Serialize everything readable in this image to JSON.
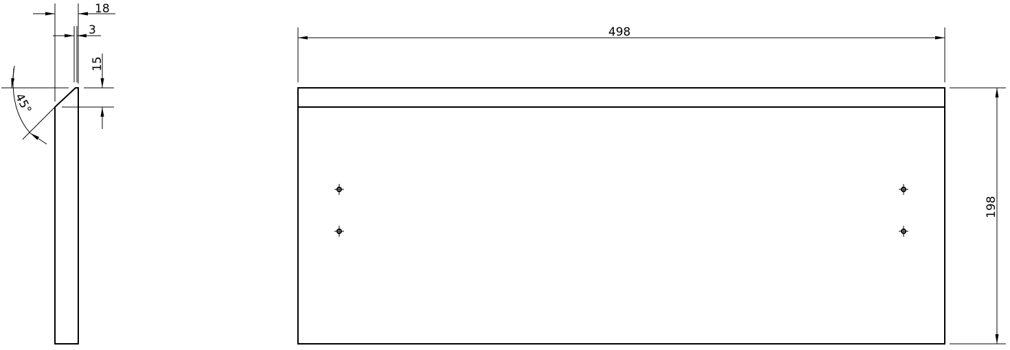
{
  "side_view": {
    "dim_thickness": "18",
    "dim_chamfer_width": "3",
    "dim_chamfer_height": "15",
    "dim_angle": "45°"
  },
  "front_view": {
    "dim_width": "498",
    "dim_height": "198",
    "holes": 4
  },
  "colors": {
    "line": "#000000",
    "background": "#ffffff"
  }
}
